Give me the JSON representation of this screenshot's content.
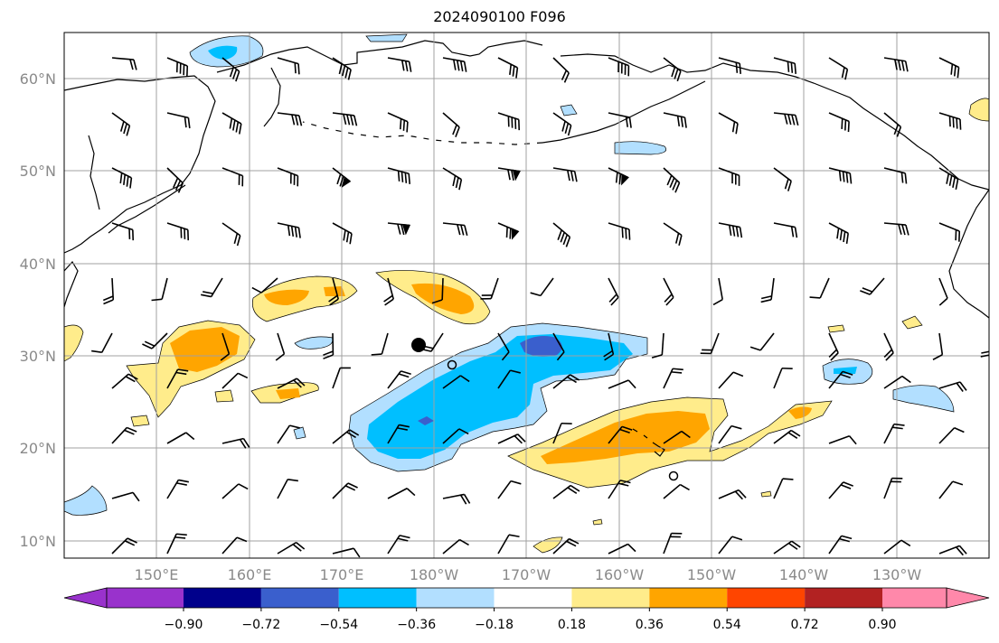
{
  "title": "2024090100 F096",
  "map": {
    "lat_labels": [
      "10°N",
      "20°N",
      "30°N",
      "40°N",
      "50°N",
      "60°N"
    ],
    "lon_labels": [
      "150°E",
      "160°E",
      "170°E",
      "180°W",
      "170°W",
      "160°W",
      "150°W",
      "140°W",
      "130°W"
    ],
    "gridlines": true
  },
  "colorbar": {
    "ticks": [
      "−0.90",
      "−0.72",
      "−0.54",
      "−0.36",
      "−0.18",
      "0.18",
      "0.36",
      "0.54",
      "0.72",
      "0.90"
    ],
    "colors": [
      "#9932cc",
      "#00008b",
      "#3a5fcd",
      "#00bfff",
      "#b2dfff",
      "#ffffff",
      "#ffec8b",
      "#ffa500",
      "#ff4500",
      "#b22222",
      "#ff88aa"
    ],
    "extend": "both"
  },
  "markers": {
    "filled_dot": {
      "lon": -178.3,
      "lat": 31.2
    },
    "open_circles": [
      {
        "lon": -177.9,
        "lat": 28.9
      },
      {
        "lon": -154.0,
        "lat": 17.0
      }
    ]
  },
  "colors": {
    "light_blue": "#b2dfff",
    "blue": "#00bfff",
    "dark_blue": "#3a5fcd",
    "navy": "#00008b",
    "yellow": "#ffec8b",
    "orange": "#ffa500"
  }
}
